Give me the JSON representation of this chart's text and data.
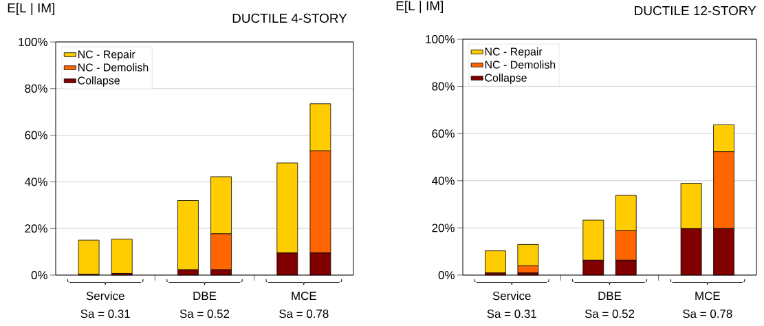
{
  "chart_data": [
    {
      "type": "bar",
      "stacked": true,
      "title": "DUCTILE 4-STORY",
      "ylabel": "E[L | IM]",
      "categories": [
        null,
        null,
        null,
        null,
        null,
        null
      ],
      "series": [
        {
          "name": "Collapse",
          "color": "#800000",
          "values": [
            0.3,
            0.7,
            2.3,
            2.3,
            9.5,
            9.5
          ]
        },
        {
          "name": "NC - Demolish",
          "color": "#ff6600",
          "values": [
            0,
            0,
            0,
            15.4,
            0,
            43.8
          ]
        },
        {
          "name": "NC - Repair",
          "color": "#ffcc00",
          "values": [
            14.7,
            14.7,
            29.7,
            24.5,
            38.6,
            20.2
          ]
        }
      ],
      "ylim": [
        0,
        100
      ],
      "yticks": [
        {
          "value": 0,
          "label": "0%"
        },
        {
          "value": 20,
          "label": "20%"
        },
        {
          "value": 40,
          "label": "40%"
        },
        {
          "value": 60,
          "label": "60%"
        },
        {
          "value": 80,
          "label": "80%"
        },
        {
          "value": 100,
          "label": "100%"
        }
      ],
      "grid": "y",
      "legend": "top left",
      "annotations": [
        "Service",
        "Sa = 0.31",
        "DBE",
        "Sa = 0.52",
        "MCE",
        "Sa = 0.78"
      ]
    },
    {
      "type": "bar",
      "stacked": true,
      "title": "DUCTILE 12-STORY",
      "ylabel": "E[L | IM]",
      "categories": [
        null,
        null,
        null,
        null,
        null,
        null
      ],
      "series": [
        {
          "name": "Collapse",
          "color": "#800000",
          "values": [
            0.9,
            0.9,
            6.3,
            6.3,
            19.7,
            19.7
          ]
        },
        {
          "name": "NC - Demolish",
          "color": "#ff6600",
          "values": [
            0,
            3.0,
            0,
            12.5,
            0,
            32.6
          ]
        },
        {
          "name": "NC - Repair",
          "color": "#ffcc00",
          "values": [
            9.4,
            9.1,
            17.0,
            15.0,
            19.2,
            11.4
          ]
        }
      ],
      "ylim": [
        0,
        100
      ],
      "yticks": [
        {
          "value": 0,
          "label": "0%"
        },
        {
          "value": 20,
          "label": "20%"
        },
        {
          "value": 40,
          "label": "40%"
        },
        {
          "value": 60,
          "label": "60%"
        },
        {
          "value": 80,
          "label": "80%"
        },
        {
          "value": 100,
          "label": "100%"
        }
      ],
      "grid": "y",
      "legend": "top left",
      "annotations": [
        "Service",
        "Sa = 0.31",
        "DBE",
        "Sa = 0.52",
        "MCE",
        "Sa = 0.78"
      ]
    }
  ]
}
